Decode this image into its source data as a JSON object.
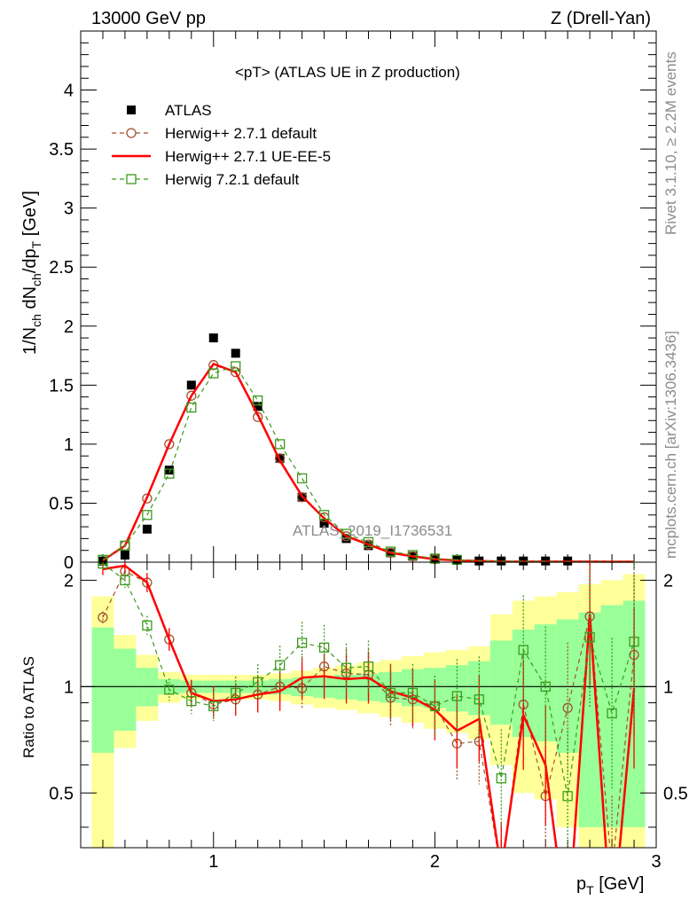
{
  "chart_data": {
    "type": "line",
    "header": {
      "left": "13000 GeV pp",
      "right": "Z (Drell-Yan)"
    },
    "title": "<pT> (ATLAS UE in Z production)",
    "side_text_top": "Rivet 3.1.10, ≥ 2.2M events",
    "side_text_bottom": "mcplots.cern.ch [arXiv:1306.3436]",
    "watermark": "ATLAS_2019_I1736531",
    "xlabel": "p_T [GeV]",
    "xlim": [
      0.4,
      3.0
    ],
    "top_panel": {
      "ylabel": "1/N_ch dN_ch/dp_T [GeV]",
      "ylim": [
        0,
        4.5
      ],
      "yticks": [
        "0",
        "0.5",
        "1",
        "1.5",
        "2",
        "2.5",
        "3",
        "3.5",
        "4"
      ]
    },
    "ratio_panel": {
      "ylabel": "Ratio to ATLAS",
      "ylim": [
        0.35,
        2.25
      ],
      "yticks": [
        "0.5",
        "1",
        "2"
      ]
    },
    "xticks": [
      "1",
      "2",
      "3"
    ],
    "x": [
      0.5,
      0.6,
      0.7,
      0.8,
      0.9,
      1.0,
      1.1,
      1.2,
      1.3,
      1.4,
      1.5,
      1.6,
      1.7,
      1.8,
      1.9,
      2.0,
      2.1,
      2.2,
      2.3,
      2.4,
      2.5,
      2.6,
      2.7,
      2.8,
      2.9
    ],
    "series": [
      {
        "name": "ATLAS",
        "style": "marker",
        "color": "#000000",
        "values": [
          0.01,
          0.06,
          0.28,
          0.78,
          1.5,
          1.9,
          1.77,
          1.32,
          0.88,
          0.55,
          0.33,
          0.2,
          0.14,
          0.08,
          0.05,
          0.03,
          0.02,
          0.01,
          0.01,
          0.01,
          0.01,
          0.01,
          0.005,
          0.005,
          0.005
        ]
      },
      {
        "name": "Herwig++ 2.7.1 default",
        "style": "dashed-circle",
        "color": "#a0522d",
        "values": [
          0.015,
          0.14,
          0.54,
          1.0,
          1.41,
          1.67,
          1.61,
          1.23,
          0.88,
          0.55,
          0.38,
          0.22,
          0.15,
          0.08,
          0.05,
          0.025,
          0.015,
          0.01,
          0.005,
          0.005,
          0.005,
          0.005,
          0.005,
          0.004,
          0.004
        ],
        "ratio": [
          1.57,
          2.12,
          1.97,
          1.36,
          0.96,
          0.89,
          0.92,
          0.95,
          1.0,
          0.99,
          1.14,
          1.09,
          1.08,
          0.93,
          0.92,
          0.88,
          0.69,
          0.7,
          0.3,
          0.89,
          0.49,
          0.87,
          1.58,
          0.3,
          1.23
        ]
      },
      {
        "name": "Herwig++ 2.7.1 UE-EE-5",
        "style": "solid",
        "color": "#ff0000",
        "values": [
          0.015,
          0.14,
          0.55,
          1.0,
          1.41,
          1.68,
          1.61,
          1.25,
          0.86,
          0.56,
          0.37,
          0.22,
          0.15,
          0.08,
          0.05,
          0.025,
          0.015,
          0.01,
          0.005,
          0.005,
          0.005,
          0.005,
          0.005,
          0.004,
          0.004
        ],
        "ratio": [
          2.15,
          2.2,
          1.97,
          1.36,
          0.96,
          0.91,
          0.92,
          0.95,
          0.97,
          1.06,
          1.07,
          1.05,
          1.06,
          0.97,
          0.93,
          0.86,
          0.75,
          0.81,
          0.3,
          0.83,
          0.6,
          0.2,
          1.6,
          0.2,
          0.99
        ]
      },
      {
        "name": "Herwig 7.2.1 default",
        "style": "dashed-square",
        "color": "#3c9a1c",
        "values": [
          0.02,
          0.14,
          0.4,
          0.75,
          1.31,
          1.6,
          1.66,
          1.37,
          1.0,
          0.71,
          0.4,
          0.24,
          0.17,
          0.09,
          0.06,
          0.03,
          0.02,
          0.012,
          0.008,
          0.008,
          0.006,
          0.005,
          0.005,
          0.004,
          0.004
        ],
        "ratio": [
          2.23,
          2.0,
          1.49,
          0.98,
          0.91,
          0.88,
          0.96,
          1.03,
          1.15,
          1.33,
          1.29,
          1.13,
          1.14,
          0.96,
          0.96,
          0.88,
          0.94,
          0.92,
          0.55,
          1.27,
          1.0,
          0.49,
          1.38,
          0.84,
          1.34
        ]
      }
    ],
    "band_inner": [
      0.65,
      0.75,
      0.88,
      0.95,
      0.96,
      0.96,
      0.96,
      0.96,
      0.95,
      0.94,
      0.93,
      0.92,
      0.91,
      0.9,
      0.88,
      0.87,
      0.85,
      0.83,
      0.78,
      0.72,
      0.7,
      0.65,
      0.4,
      0.4,
      0.4
    ],
    "band_inner_hi": [
      1.47,
      1.28,
      1.13,
      1.05,
      1.04,
      1.04,
      1.04,
      1.04,
      1.05,
      1.06,
      1.07,
      1.08,
      1.09,
      1.1,
      1.12,
      1.13,
      1.15,
      1.18,
      1.35,
      1.45,
      1.5,
      1.55,
      1.62,
      1.7,
      1.75
    ],
    "band_outer": [
      0.3,
      0.67,
      0.8,
      0.9,
      0.92,
      0.92,
      0.92,
      0.92,
      0.91,
      0.89,
      0.87,
      0.86,
      0.84,
      0.82,
      0.79,
      0.76,
      0.74,
      0.71,
      0.6,
      0.5,
      0.48,
      0.4,
      0.3,
      0.3,
      0.3
    ],
    "band_outer_hi": [
      1.8,
      1.4,
      1.23,
      1.1,
      1.08,
      1.08,
      1.08,
      1.08,
      1.09,
      1.11,
      1.13,
      1.15,
      1.17,
      1.19,
      1.22,
      1.25,
      1.27,
      1.3,
      1.6,
      1.75,
      1.8,
      1.85,
      1.95,
      2.0,
      2.08
    ]
  }
}
